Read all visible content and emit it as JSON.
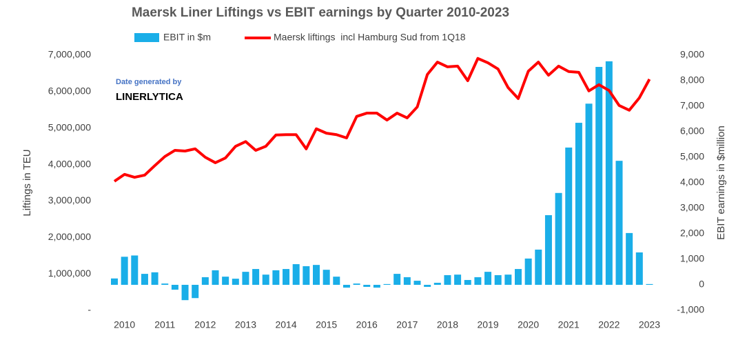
{
  "chart_data": {
    "type": "bar_line",
    "title": "Maersk Liner Liftings vs EBIT earnings by Quarter 2010-2023",
    "y_label": "Liftings in TEU",
    "y2_label": "EBIT earnings in $million",
    "annotations": [
      "Date generated by",
      "LINERLYTICA"
    ],
    "categories": [
      null,
      "2010",
      null,
      null,
      null,
      "2011",
      null,
      null,
      null,
      "2012",
      null,
      null,
      null,
      "2013",
      null,
      null,
      null,
      "2014",
      null,
      null,
      null,
      "2015",
      null,
      null,
      null,
      "2016",
      null,
      null,
      null,
      "2017",
      null,
      null,
      null,
      "2018",
      null,
      null,
      null,
      "2019",
      null,
      null,
      null,
      "2020",
      null,
      null,
      null,
      "2021",
      null,
      null,
      null,
      "2022",
      null,
      null,
      null,
      "2023"
    ],
    "series": [
      {
        "name": "EBIT in $m",
        "type": "bar",
        "axis": "y2",
        "color": "#1aaee8",
        "values": [
          250,
          1100,
          1150,
          430,
          490,
          50,
          -190,
          -600,
          -520,
          300,
          570,
          320,
          240,
          510,
          620,
          400,
          570,
          620,
          810,
          730,
          780,
          590,
          320,
          -110,
          50,
          -80,
          -110,
          30,
          430,
          300,
          160,
          -80,
          80,
          380,
          400,
          190,
          300,
          510,
          380,
          400,
          620,
          1030,
          1380,
          2730,
          3600,
          5380,
          6350,
          7100,
          8540,
          8760,
          4860,
          2030,
          1270,
          30
        ]
      },
      {
        "name": "Maersk liftings  incl Hamburg Sud from 1Q18",
        "type": "line",
        "axis": "y",
        "color": "#ff0000",
        "values": [
          3540000,
          3730000,
          3650000,
          3710000,
          3970000,
          4220000,
          4390000,
          4370000,
          4430000,
          4200000,
          4050000,
          4180000,
          4500000,
          4630000,
          4390000,
          4500000,
          4810000,
          4820000,
          4820000,
          4430000,
          4980000,
          4860000,
          4820000,
          4730000,
          5320000,
          5410000,
          5410000,
          5220000,
          5410000,
          5280000,
          5580000,
          6470000,
          6810000,
          6680000,
          6700000,
          6300000,
          6910000,
          6790000,
          6620000,
          6110000,
          5810000,
          6560000,
          6810000,
          6450000,
          6700000,
          6550000,
          6530000,
          6020000,
          6190000,
          6030000,
          5620000,
          5490000,
          5830000,
          6340000
        ]
      }
    ],
    "ylim": [
      0,
      7000000
    ],
    "yticks": [
      {
        "value": 0,
        "label": "-"
      },
      {
        "value": 1000000,
        "label": "1,000,000"
      },
      {
        "value": 2000000,
        "label": "2,000,000"
      },
      {
        "value": 3000000,
        "label": "3,000,000"
      },
      {
        "value": 4000000,
        "label": "4,000,000"
      },
      {
        "value": 5000000,
        "label": "5,000,000"
      },
      {
        "value": 6000000,
        "label": "6,000,000"
      },
      {
        "value": 7000000,
        "label": "7,000,000"
      }
    ],
    "y2lim": [
      -1000,
      9000
    ],
    "y2ticks": [
      {
        "value": -1000,
        "label": "-1,000"
      },
      0,
      {
        "value": 1000,
        "label": "1,000"
      },
      {
        "value": 2000,
        "label": "2,000"
      },
      {
        "value": 3000,
        "label": "3,000"
      },
      {
        "value": 4000,
        "label": "4,000"
      },
      {
        "value": 5000,
        "label": "5,000"
      },
      {
        "value": 6000,
        "label": "6,000"
      },
      {
        "value": 7000,
        "label": "7,000"
      },
      {
        "value": 8000,
        "label": "8,000"
      },
      {
        "value": 9000,
        "label": "9,000"
      }
    ],
    "grid": false,
    "legend": "top"
  }
}
